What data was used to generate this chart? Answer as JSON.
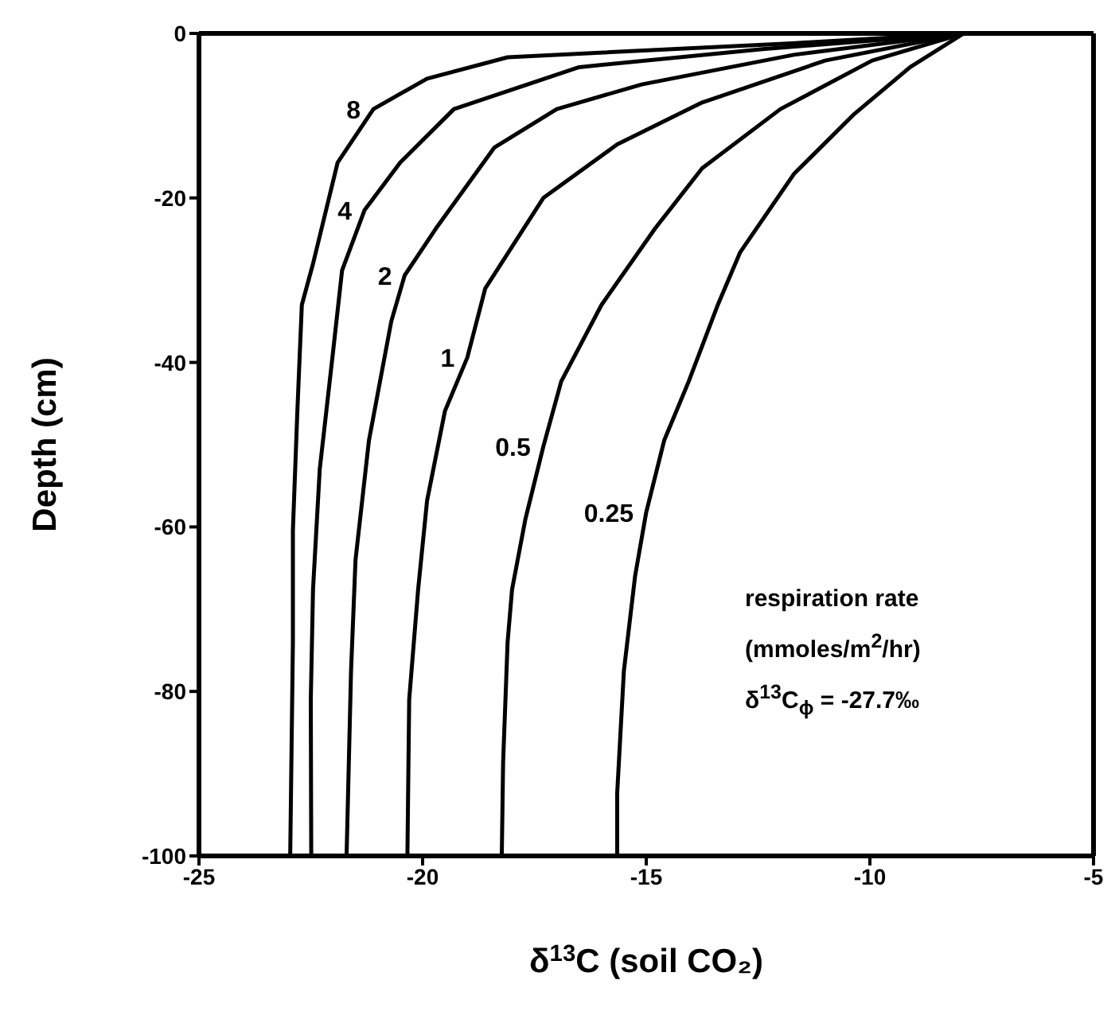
{
  "chart_data": {
    "type": "line",
    "xlabel": "δ$^{13}$C (soil CO₂)",
    "ylabel": "Depth (cm)",
    "xlim": [
      -25,
      -5
    ],
    "xticks": [
      -25,
      -20,
      -15,
      -10,
      -5
    ],
    "ylim": [
      -100,
      0
    ],
    "yticks": [
      -100,
      -80,
      -60,
      -40,
      -20,
      0
    ],
    "grid": false,
    "legend": false,
    "marker": "none",
    "line_style": "solid",
    "annotations": [
      "respiration rate",
      "(mmoles/m$^{2}$/hr)",
      "δ$^{13}$C$_{ϕ}$ = -27.7‰"
    ],
    "series": [
      {
        "name": "8",
        "color": "#000000",
        "x": [
          -22.96,
          -22.9,
          -22.9,
          -22.8,
          -22.7,
          -22.45,
          -21.9,
          -21.1,
          -19.9,
          -18.1,
          -11.75,
          -7.9
        ],
        "values": [
          -100,
          -74,
          -60.4,
          -45.9,
          -33,
          -28,
          -15.7,
          -9.2,
          -5.5,
          -2.9,
          -1.2,
          0
        ]
      },
      {
        "name": "4",
        "color": "#000000",
        "x": [
          -22.49,
          -22.5,
          -22.45,
          -22.3,
          -22.0,
          -21.8,
          -21.3,
          -20.5,
          -19.3,
          -16.5,
          -12.4,
          -7.9
        ],
        "values": [
          -100,
          -81,
          -67.6,
          -53,
          -38.6,
          -28.8,
          -21.5,
          -15.7,
          -9.2,
          -4.1,
          -1.9,
          0
        ]
      },
      {
        "name": "2",
        "color": "#000000",
        "x": [
          -21.7,
          -21.6,
          -21.5,
          -21.2,
          -20.7,
          -20.4,
          -19.7,
          -18.4,
          -17.0,
          -15.1,
          -11.7,
          -7.9
        ],
        "values": [
          -100,
          -77.5,
          -64,
          -49.5,
          -35,
          -29.4,
          -23.7,
          -13.9,
          -9.2,
          -6.2,
          -2.6,
          0
        ]
      },
      {
        "name": "1",
        "color": "#000000",
        "x": [
          -20.34,
          -20.3,
          -20.1,
          -19.9,
          -19.5,
          -19.0,
          -18.6,
          -17.3,
          -15.65,
          -13.75,
          -11.0,
          -7.9
        ],
        "values": [
          -100,
          -81,
          -67.6,
          -56.8,
          -45.9,
          -39.4,
          -31,
          -20,
          -13.5,
          -8.4,
          -3.3,
          0
        ]
      },
      {
        "name": "0.5",
        "color": "#000000",
        "x": [
          -18.23,
          -18.2,
          -18.1,
          -18.0,
          -17.7,
          -17.3,
          -16.9,
          -16.0,
          -14.8,
          -13.75,
          -12.0,
          -9.95,
          -7.9
        ],
        "values": [
          -100,
          -88.6,
          -74,
          -67.6,
          -59,
          -50.2,
          -42.3,
          -33,
          -23.7,
          -16.4,
          -9.2,
          -3.3,
          0
        ]
      },
      {
        "name": "0.25",
        "color": "#000000",
        "x": [
          -15.65,
          -15.65,
          -15.5,
          -15.25,
          -15.0,
          -14.6,
          -14.05,
          -13.4,
          -12.9,
          -11.7,
          -10.35,
          -9.1,
          -7.9
        ],
        "values": [
          -100,
          -92.4,
          -77.5,
          -66,
          -58.2,
          -49.5,
          -42.3,
          -33,
          -26.6,
          -17.1,
          -9.8,
          -4.1,
          0
        ]
      }
    ]
  }
}
